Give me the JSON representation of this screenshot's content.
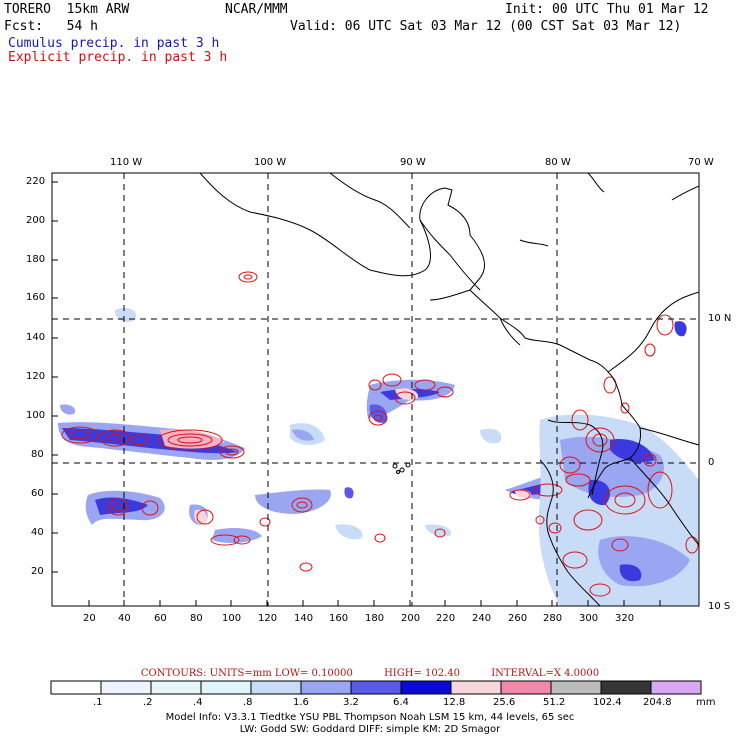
{
  "header": {
    "model": "TORERO  15km ARW",
    "org": "NCAR/MMM",
    "init": "Init: 00 UTC Thu 01 Mar 12",
    "fcst": "Fcst:   54 h",
    "valid": "Valid: 06 UTC Sat 03 Mar 12 (00 CST Sat 03 Mar 12)",
    "line_blue": "Cumulus precip. in past 3 h",
    "line_red": "Explicit precip. in past 3 h"
  },
  "map": {
    "lon_labels": [
      "110 W",
      "100 W",
      "90 W",
      "80 W",
      "70 W"
    ],
    "lat_labels": [
      "10 N",
      "0",
      "10 S"
    ],
    "y_ticks": [
      "220",
      "200",
      "180",
      "160",
      "140",
      "120",
      "100",
      "80",
      "60",
      "40",
      "20"
    ],
    "x_ticks": [
      "20",
      "40",
      "60",
      "80",
      "100",
      "120",
      "140",
      "160",
      "180",
      "200",
      "220",
      "240",
      "260",
      "280",
      "300",
      "320"
    ]
  },
  "colorbar": {
    "labels": [
      ".1",
      ".2",
      ".4",
      ".8",
      "1.6",
      "3.2",
      "6.4",
      "12.8",
      "25.6",
      "51.2",
      "102.4",
      "204.8"
    ],
    "unit": "mm",
    "colors": [
      "#ffffff",
      "#eef4ff",
      "#e8f6fa",
      "#dff4fb",
      "#c8dcf8",
      "#9aa6f2",
      "#5a5ae8",
      "#0a0ad8",
      "#f9d6dc",
      "#f08aa8",
      "#bcbcbc",
      "#353535",
      "#d9a8f2"
    ]
  },
  "contours": {
    "units": "CONTOURS:  UNITS=mm  LOW= 0.10000",
    "high": "HIGH=  102.40",
    "interval": "INTERVAL=X  4.0000"
  },
  "model_info": {
    "line1": "Model Info: V3.3.1    Tiedtke YSU PBL  Thompson    Noah LSM  15 km,    44 levels,    65 sec",
    "line2": "LW: Godd SW: Goddard DIFF: simple KM: 2D Smagor"
  }
}
